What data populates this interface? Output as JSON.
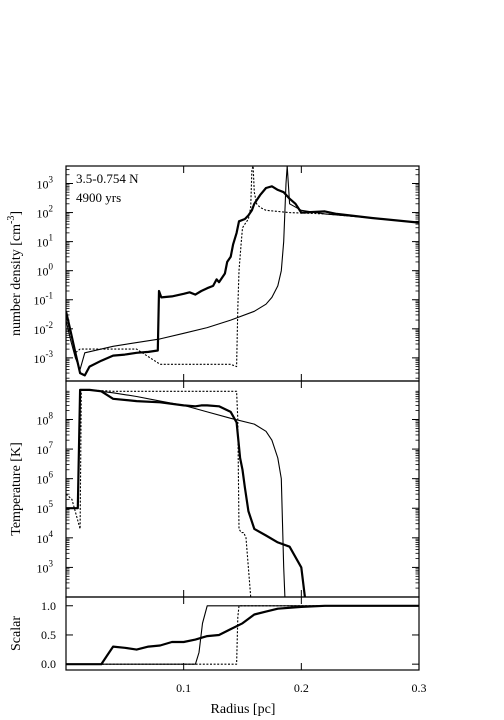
{
  "chart_data": [
    {
      "type": "line",
      "panel": "density",
      "ylabel_main": "number density [cm",
      "ylabel_sup": "-3",
      "ylabel_close": "]",
      "yscale": "log",
      "xlim": [
        0.0,
        0.3
      ],
      "ylim": [
        0.00016,
        4000
      ],
      "yticks": [
        {
          "v": 0.001,
          "b": "10",
          "e": "-3"
        },
        {
          "v": 0.01,
          "b": "10",
          "e": "-2"
        },
        {
          "v": 0.1,
          "b": "10",
          "e": "-1"
        },
        {
          "v": 1,
          "b": "10",
          "e": "0"
        },
        {
          "v": 10,
          "b": "10",
          "e": "1"
        },
        {
          "v": 100,
          "b": "10",
          "e": "2"
        },
        {
          "v": 1000,
          "b": "10",
          "e": "3"
        }
      ],
      "annotations": [
        "3.5-0.754 N",
        "4900 yrs"
      ],
      "series": [
        {
          "style": "thick",
          "points": [
            [
              0.0,
              0.04
            ],
            [
              0.004,
              0.008
            ],
            [
              0.008,
              0.0015
            ],
            [
              0.012,
              0.0003
            ],
            [
              0.016,
              0.00025
            ],
            [
              0.02,
              0.0005
            ],
            [
              0.03,
              0.0008
            ],
            [
              0.04,
              0.0012
            ],
            [
              0.05,
              0.0013
            ],
            [
              0.06,
              0.0015
            ],
            [
              0.07,
              0.0016
            ],
            [
              0.078,
              0.0018
            ],
            [
              0.079,
              0.2
            ],
            [
              0.081,
              0.12
            ],
            [
              0.09,
              0.13
            ],
            [
              0.1,
              0.16
            ],
            [
              0.105,
              0.18
            ],
            [
              0.11,
              0.15
            ],
            [
              0.115,
              0.2
            ],
            [
              0.12,
              0.25
            ],
            [
              0.125,
              0.3
            ],
            [
              0.128,
              0.5
            ],
            [
              0.13,
              0.4
            ],
            [
              0.135,
              0.8
            ],
            [
              0.137,
              2
            ],
            [
              0.14,
              3
            ],
            [
              0.142,
              8
            ],
            [
              0.145,
              20
            ],
            [
              0.147,
              50
            ],
            [
              0.152,
              60
            ],
            [
              0.155,
              80
            ],
            [
              0.158,
              120
            ],
            [
              0.16,
              200
            ],
            [
              0.165,
              400
            ],
            [
              0.17,
              700
            ],
            [
              0.175,
              800
            ],
            [
              0.18,
              600
            ],
            [
              0.185,
              500
            ],
            [
              0.19,
              300
            ],
            [
              0.195,
              200
            ],
            [
              0.2,
              100
            ],
            [
              0.22,
              110
            ],
            [
              0.23,
              90
            ],
            [
              0.26,
              65
            ],
            [
              0.3,
              45
            ]
          ]
        },
        {
          "style": "thin",
          "points": [
            [
              0.0,
              0.02
            ],
            [
              0.004,
              0.004
            ],
            [
              0.008,
              0.001
            ],
            [
              0.012,
              0.0004
            ],
            [
              0.016,
              0.0015
            ],
            [
              0.04,
              0.0025
            ],
            [
              0.08,
              0.0045
            ],
            [
              0.1,
              0.007
            ],
            [
              0.12,
              0.011
            ],
            [
              0.14,
              0.02
            ],
            [
              0.16,
              0.04
            ],
            [
              0.17,
              0.07
            ],
            [
              0.175,
              0.12
            ],
            [
              0.18,
              0.3
            ],
            [
              0.183,
              1
            ],
            [
              0.185,
              10
            ],
            [
              0.187,
              1000
            ],
            [
              0.188,
              4000
            ],
            [
              0.19,
              200
            ],
            [
              0.2,
              120
            ],
            [
              0.22,
              90
            ],
            [
              0.26,
              65
            ],
            [
              0.3,
              45
            ]
          ]
        },
        {
          "style": "dotted",
          "points": [
            [
              0.0,
              0.03
            ],
            [
              0.004,
              0.006
            ],
            [
              0.008,
              0.0015
            ],
            [
              0.012,
              0.002
            ],
            [
              0.03,
              0.002
            ],
            [
              0.06,
              0.002
            ],
            [
              0.08,
              0.0006
            ],
            [
              0.1,
              0.0006
            ],
            [
              0.12,
              0.0006
            ],
            [
              0.14,
              0.0006
            ],
            [
              0.145,
              0.0005
            ],
            [
              0.146,
              0.05
            ],
            [
              0.147,
              1
            ],
            [
              0.149,
              10
            ],
            [
              0.15,
              30
            ],
            [
              0.152,
              40
            ],
            [
              0.155,
              60
            ],
            [
              0.157,
              150
            ],
            [
              0.158,
              3000
            ],
            [
              0.159,
              4000
            ],
            [
              0.16,
              500
            ],
            [
              0.162,
              200
            ],
            [
              0.165,
              150
            ],
            [
              0.17,
              120
            ],
            [
              0.19,
              100
            ],
            [
              0.22,
              90
            ],
            [
              0.26,
              65
            ],
            [
              0.3,
              45
            ]
          ]
        }
      ]
    },
    {
      "type": "line",
      "panel": "temperature",
      "ylabel": "Temperature [K]",
      "yscale": "log",
      "xlim": [
        0.0,
        0.3
      ],
      "ylim": [
        100,
        2000000000
      ],
      "yticks": [
        {
          "v": 1000,
          "b": "10",
          "e": "3"
        },
        {
          "v": 10000,
          "b": "10",
          "e": "4"
        },
        {
          "v": 100000,
          "b": "10",
          "e": "5"
        },
        {
          "v": 1000000,
          "b": "10",
          "e": "6"
        },
        {
          "v": 10000000,
          "b": "10",
          "e": "7"
        },
        {
          "v": 100000000,
          "b": "10",
          "e": "8"
        }
      ],
      "series": [
        {
          "style": "thick",
          "points": [
            [
              0.0,
              100000
            ],
            [
              0.005,
              100000
            ],
            [
              0.01,
              100000
            ],
            [
              0.012,
              1000000000
            ],
            [
              0.02,
              1000000000
            ],
            [
              0.03,
              900000000
            ],
            [
              0.04,
              500000000
            ],
            [
              0.06,
              420000000
            ],
            [
              0.08,
              380000000
            ],
            [
              0.1,
              300000000
            ],
            [
              0.11,
              280000000
            ],
            [
              0.115,
              300000000
            ],
            [
              0.12,
              300000000
            ],
            [
              0.13,
              280000000
            ],
            [
              0.14,
              180000000
            ],
            [
              0.145,
              80000000
            ],
            [
              0.148,
              5000000
            ],
            [
              0.15,
              2000000
            ],
            [
              0.152,
              500000
            ],
            [
              0.155,
              80000
            ],
            [
              0.16,
              20000
            ],
            [
              0.17,
              12000
            ],
            [
              0.18,
              7000
            ],
            [
              0.19,
              5000
            ],
            [
              0.2,
              1000
            ],
            [
              0.203,
              100
            ]
          ]
        },
        {
          "style": "thin",
          "points": [
            [
              0.0,
              100000
            ],
            [
              0.005,
              100000
            ],
            [
              0.01,
              100000
            ],
            [
              0.012,
              1000000000
            ],
            [
              0.02,
              1000000000
            ],
            [
              0.04,
              800000000
            ],
            [
              0.06,
              600000000
            ],
            [
              0.08,
              420000000
            ],
            [
              0.1,
              300000000
            ],
            [
              0.12,
              180000000
            ],
            [
              0.14,
              110000000
            ],
            [
              0.16,
              70000000
            ],
            [
              0.17,
              40000000
            ],
            [
              0.175,
              20000000
            ],
            [
              0.18,
              5000000
            ],
            [
              0.183,
              1000000
            ],
            [
              0.185,
              1000
            ],
            [
              0.186,
              100
            ]
          ]
        },
        {
          "style": "dotted",
          "points": [
            [
              0.0,
              300000
            ],
            [
              0.005,
              200000
            ],
            [
              0.012,
              20000
            ],
            [
              0.013,
              1000000000
            ],
            [
              0.02,
              1000000000
            ],
            [
              0.04,
              900000000
            ],
            [
              0.06,
              900000000
            ],
            [
              0.08,
              900000000
            ],
            [
              0.1,
              900000000
            ],
            [
              0.12,
              900000000
            ],
            [
              0.14,
              900000000
            ],
            [
              0.145,
              900000000
            ],
            [
              0.146,
              100000000
            ],
            [
              0.147,
              20000
            ],
            [
              0.149,
              15000
            ],
            [
              0.151,
              15000
            ],
            [
              0.153,
              10000
            ],
            [
              0.156,
              300
            ],
            [
              0.157,
              100
            ]
          ]
        }
      ]
    },
    {
      "type": "line",
      "panel": "scalar",
      "ylabel": "Scalar",
      "xlabel": "Radius [pc]",
      "yscale": "linear",
      "xlim": [
        0.0,
        0.3
      ],
      "ylim": [
        -0.1,
        1.15
      ],
      "yticks": [
        {
          "v": 0.0,
          "t": "0.0"
        },
        {
          "v": 0.5,
          "t": "0.5"
        },
        {
          "v": 1.0,
          "t": "1.0"
        }
      ],
      "xticks": [
        {
          "v": 0.1,
          "t": "0.1"
        },
        {
          "v": 0.2,
          "t": "0.2"
        },
        {
          "v": 0.3,
          "t": "0.3"
        }
      ],
      "series": [
        {
          "style": "thick",
          "points": [
            [
              0.0,
              0.0
            ],
            [
              0.02,
              0.0
            ],
            [
              0.03,
              0.0
            ],
            [
              0.035,
              0.15
            ],
            [
              0.04,
              0.3
            ],
            [
              0.05,
              0.28
            ],
            [
              0.06,
              0.25
            ],
            [
              0.07,
              0.3
            ],
            [
              0.08,
              0.32
            ],
            [
              0.09,
              0.38
            ],
            [
              0.1,
              0.38
            ],
            [
              0.11,
              0.42
            ],
            [
              0.12,
              0.48
            ],
            [
              0.13,
              0.5
            ],
            [
              0.14,
              0.6
            ],
            [
              0.15,
              0.7
            ],
            [
              0.16,
              0.85
            ],
            [
              0.17,
              0.9
            ],
            [
              0.18,
              0.95
            ],
            [
              0.2,
              0.98
            ],
            [
              0.22,
              1.0
            ],
            [
              0.3,
              1.0
            ]
          ]
        },
        {
          "style": "thin",
          "points": [
            [
              0.0,
              0.0
            ],
            [
              0.1,
              0.0
            ],
            [
              0.11,
              0.0
            ],
            [
              0.113,
              0.2
            ],
            [
              0.116,
              0.7
            ],
            [
              0.12,
              1.0
            ],
            [
              0.3,
              1.0
            ]
          ]
        },
        {
          "style": "dotted",
          "points": [
            [
              0.0,
              0.0
            ],
            [
              0.1,
              0.0
            ],
            [
              0.14,
              0.0
            ],
            [
              0.145,
              0.0
            ],
            [
              0.146,
              0.8
            ],
            [
              0.147,
              1.0
            ],
            [
              0.3,
              1.0
            ]
          ]
        }
      ]
    }
  ]
}
